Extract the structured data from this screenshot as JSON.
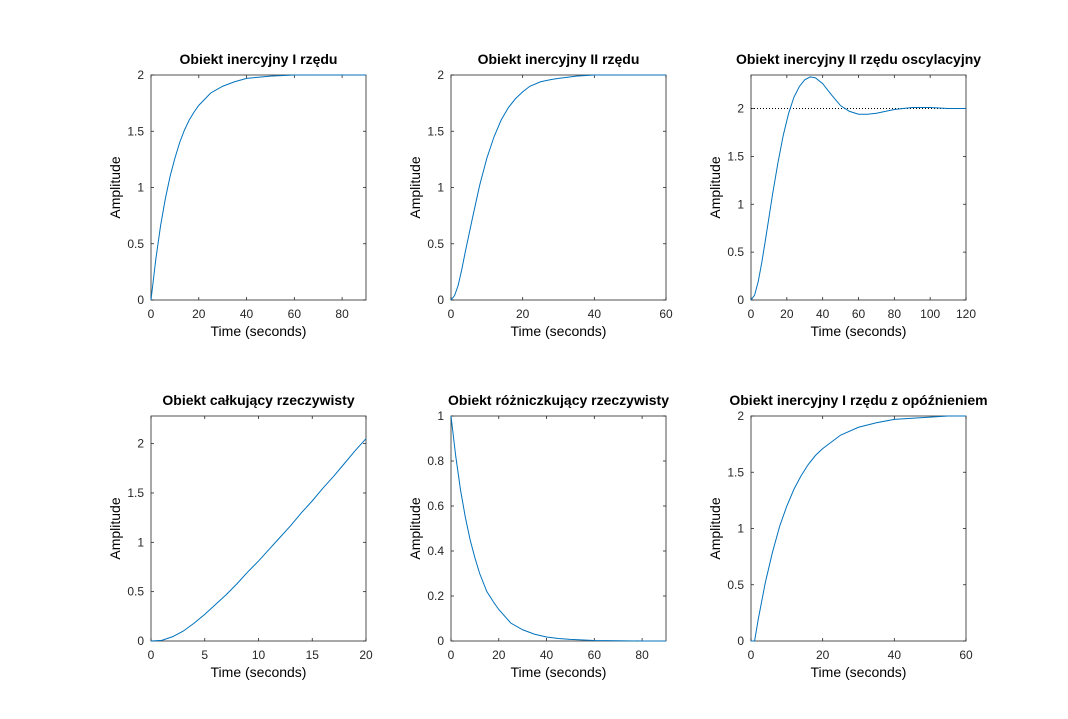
{
  "chart_data": [
    {
      "type": "line",
      "title": "Obiekt inercyjny I rzędu",
      "xlabel": "Time (seconds)",
      "ylabel": "Amplitude",
      "xlim": [
        0,
        90
      ],
      "ylim": [
        0,
        2
      ],
      "xticks": [
        "0",
        "20",
        "40",
        "60",
        "80"
      ],
      "xtick_values": [
        0,
        20,
        40,
        60,
        80
      ],
      "yticks": [
        "0",
        "0.5",
        "1",
        "1.5",
        "2"
      ],
      "ytick_values": [
        0,
        0.5,
        1,
        1.5,
        2
      ],
      "series": [
        {
          "x": [
            0,
            2,
            4,
            6,
            8,
            10,
            12,
            14,
            16,
            18,
            20,
            25,
            30,
            35,
            40,
            45,
            50,
            60,
            70,
            80,
            90
          ],
          "y": [
            0,
            0.36,
            0.66,
            0.9,
            1.1,
            1.26,
            1.4,
            1.51,
            1.6,
            1.67,
            1.73,
            1.84,
            1.9,
            1.94,
            1.97,
            1.98,
            1.99,
            2.0,
            2.0,
            2.0,
            2.0
          ]
        }
      ],
      "color": "#0072bd"
    },
    {
      "type": "line",
      "title": "Obiekt inercyjny II rzędu",
      "xlabel": "Time (seconds)",
      "ylabel": "Amplitude",
      "xlim": [
        0,
        60
      ],
      "ylim": [
        0,
        2
      ],
      "xticks": [
        "0",
        "20",
        "40",
        "60"
      ],
      "xtick_values": [
        0,
        20,
        40,
        60
      ],
      "yticks": [
        "0",
        "0.5",
        "1",
        "1.5",
        "2"
      ],
      "ytick_values": [
        0,
        0.5,
        1,
        1.5,
        2
      ],
      "series": [
        {
          "x": [
            0,
            1,
            2,
            3,
            4,
            5,
            6,
            8,
            10,
            12,
            14,
            16,
            18,
            20,
            22,
            25,
            28,
            30,
            35,
            40,
            45,
            50,
            55,
            60
          ],
          "y": [
            0,
            0.04,
            0.13,
            0.27,
            0.43,
            0.58,
            0.73,
            1.02,
            1.26,
            1.45,
            1.6,
            1.71,
            1.79,
            1.85,
            1.9,
            1.94,
            1.96,
            1.97,
            1.99,
            2.0,
            2.0,
            2.0,
            2.0,
            2.0
          ]
        }
      ],
      "color": "#0072bd"
    },
    {
      "type": "line",
      "title": "Obiekt inercyjny II rzędu oscylacyjny",
      "xlabel": "Time (seconds)",
      "ylabel": "Amplitude",
      "xlim": [
        0,
        120
      ],
      "ylim": [
        0,
        2.35
      ],
      "xticks": [
        "0",
        "20",
        "40",
        "60",
        "80",
        "100",
        "120"
      ],
      "xtick_values": [
        0,
        20,
        40,
        60,
        80,
        100,
        120
      ],
      "yticks": [
        "0",
        "0.5",
        "1",
        "1.5",
        "2"
      ],
      "ytick_values": [
        0,
        0.5,
        1,
        1.5,
        2
      ],
      "reference_line": 2,
      "series": [
        {
          "x": [
            0,
            2,
            4,
            6,
            8,
            10,
            12,
            15,
            18,
            21,
            24,
            27,
            30,
            33,
            36,
            40,
            45,
            50,
            55,
            60,
            65,
            70,
            75,
            80,
            90,
            100,
            110,
            120
          ],
          "y": [
            0,
            0.05,
            0.19,
            0.39,
            0.62,
            0.86,
            1.1,
            1.43,
            1.72,
            1.95,
            2.12,
            2.23,
            2.3,
            2.33,
            2.32,
            2.26,
            2.14,
            2.03,
            1.97,
            1.94,
            1.94,
            1.95,
            1.97,
            1.99,
            2.01,
            2.01,
            2.0,
            2.0
          ]
        }
      ],
      "color": "#0072bd"
    },
    {
      "type": "line",
      "title": "Obiekt całkujący rzeczywisty",
      "xlabel": "Time (seconds)",
      "ylabel": "Amplitude",
      "xlim": [
        0,
        20
      ],
      "ylim": [
        0,
        2.28
      ],
      "xticks": [
        "0",
        "5",
        "10",
        "15",
        "20"
      ],
      "xtick_values": [
        0,
        5,
        10,
        15,
        20
      ],
      "yticks": [
        "0",
        "0.5",
        "1",
        "1.5",
        "2"
      ],
      "ytick_values": [
        0,
        0.5,
        1,
        1.5,
        2
      ],
      "series": [
        {
          "x": [
            0,
            1,
            2,
            3,
            4,
            5,
            6,
            7,
            8,
            9,
            10,
            11,
            12,
            13,
            14,
            15,
            16,
            17,
            18,
            19,
            20
          ],
          "y": [
            0,
            0.006,
            0.043,
            0.1,
            0.18,
            0.27,
            0.37,
            0.47,
            0.58,
            0.7,
            0.81,
            0.93,
            1.05,
            1.17,
            1.3,
            1.42,
            1.55,
            1.67,
            1.8,
            1.93,
            2.05
          ]
        }
      ],
      "color": "#0072bd"
    },
    {
      "type": "line",
      "title": "Obiekt różniczkujący rzeczywisty",
      "xlabel": "Time (seconds)",
      "ylabel": "Amplitude",
      "xlim": [
        0,
        90
      ],
      "ylim": [
        0,
        1
      ],
      "xticks": [
        "0",
        "20",
        "40",
        "60",
        "80"
      ],
      "xtick_values": [
        0,
        20,
        40,
        60,
        80
      ],
      "yticks": [
        "0",
        "0.2",
        "0.4",
        "0.6",
        "0.8",
        "1"
      ],
      "ytick_values": [
        0,
        0.2,
        0.4,
        0.6,
        0.8,
        1
      ],
      "series": [
        {
          "x": [
            0,
            2,
            4,
            6,
            8,
            10,
            12,
            15,
            18,
            20,
            25,
            30,
            35,
            40,
            45,
            50,
            60,
            70,
            80,
            90
          ],
          "y": [
            1.0,
            0.82,
            0.67,
            0.55,
            0.45,
            0.37,
            0.3,
            0.22,
            0.17,
            0.14,
            0.08,
            0.05,
            0.03,
            0.018,
            0.011,
            0.007,
            0.002,
            0.001,
            0.0,
            0.0
          ]
        }
      ],
      "color": "#0072bd"
    },
    {
      "type": "line",
      "title": "Obiekt inercyjny I rzędu z opóźnieniem",
      "xlabel": "Time (seconds)",
      "ylabel": "Amplitude",
      "xlim": [
        0,
        60
      ],
      "ylim": [
        0,
        2
      ],
      "xticks": [
        "0",
        "20",
        "40",
        "60"
      ],
      "xtick_values": [
        0,
        20,
        40,
        60
      ],
      "yticks": [
        "0",
        "0.5",
        "1",
        "1.5",
        "2"
      ],
      "ytick_values": [
        0,
        0.5,
        1,
        1.5,
        2
      ],
      "series": [
        {
          "x": [
            0,
            1,
            2,
            4,
            6,
            8,
            10,
            12,
            14,
            16,
            18,
            20,
            25,
            30,
            35,
            40,
            45,
            50,
            55,
            60
          ],
          "y": [
            0,
            0,
            0.19,
            0.52,
            0.79,
            1.02,
            1.2,
            1.35,
            1.47,
            1.57,
            1.65,
            1.71,
            1.83,
            1.9,
            1.94,
            1.97,
            1.98,
            1.99,
            2.0,
            2.0
          ]
        }
      ],
      "color": "#0072bd"
    }
  ]
}
